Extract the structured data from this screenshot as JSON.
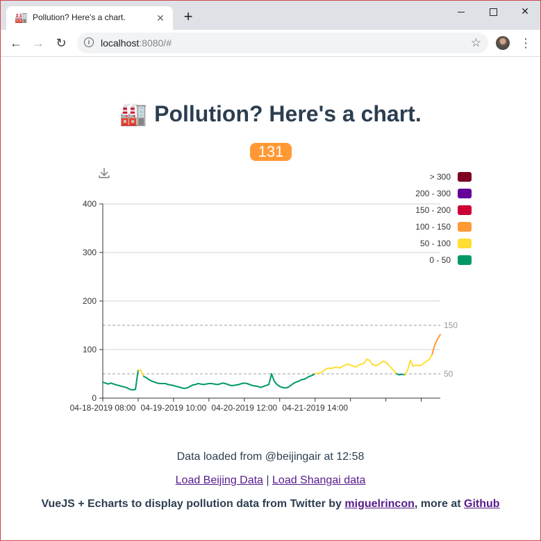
{
  "browser": {
    "tab_title": "Pollution? Here's a chart.",
    "tab_favicon": "🏭",
    "tab_close": "✕",
    "new_tab": "+",
    "url_host": "localhost",
    "url_rest": ":8080/#",
    "menu_glyph": "⋮",
    "star_glyph": "☆",
    "back_glyph": "←",
    "forward_glyph": "→",
    "reload_glyph": "↻",
    "close_glyph": "✕"
  },
  "page": {
    "heading_icon": "🏭",
    "heading": "Pollution? Here's a chart.",
    "current_aqi": "131",
    "current_aqi_color": "#ff9933",
    "loaded_text": "Data loaded from @beijingair at 12:58",
    "link_beijing": "Load Beijing Data",
    "link_sep": "|",
    "link_shanghai": "Load Shangai data",
    "credits_prefix": "VueJS + Echarts to display pollution data from Twitter by",
    "credits_author": "miguelrincon",
    "credits_mid": ", more at",
    "credits_github": "Github"
  },
  "chart_data": {
    "type": "line",
    "title": "",
    "xlabel": "",
    "ylabel": "",
    "ylim": [
      0,
      400
    ],
    "yticks": [
      0,
      100,
      200,
      300,
      400
    ],
    "xtick_labels": [
      "04-18-2019 08:00",
      "04-19-2019 10:00",
      "04-20-2019 12:00",
      "04-21-2019 14:00"
    ],
    "xtick_index": [
      0,
      26,
      52,
      78
    ],
    "grid": true,
    "legend_position": "top-right",
    "mark_lines": [
      {
        "label": "150",
        "value": 150
      },
      {
        "label": "50",
        "value": 50
      }
    ],
    "visual_map": [
      {
        "label": "> 300",
        "min": 300,
        "max": 1000,
        "color": "#7e0023"
      },
      {
        "label": "200 - 300",
        "min": 200,
        "max": 300,
        "color": "#660099"
      },
      {
        "label": "150 - 200",
        "min": 150,
        "max": 200,
        "color": "#cc0033"
      },
      {
        "label": "100 - 150",
        "min": 100,
        "max": 150,
        "color": "#ff9933"
      },
      {
        "label": "50 - 100",
        "min": 50,
        "max": 100,
        "color": "#ffde33"
      },
      {
        "label": "0 - 50",
        "min": 0,
        "max": 50,
        "color": "#096"
      }
    ],
    "series": [
      {
        "values": [
          33,
          31,
          29,
          31,
          29,
          27,
          26,
          24,
          23,
          21,
          18,
          17,
          18,
          58,
          57,
          45,
          42,
          38,
          35,
          33,
          31,
          30,
          30,
          30,
          28,
          27,
          26,
          24,
          23,
          21,
          20,
          21,
          24,
          27,
          28,
          30,
          29,
          28,
          29,
          30,
          30,
          29,
          28,
          29,
          31,
          30,
          28,
          26,
          26,
          27,
          28,
          30,
          31,
          30,
          28,
          26,
          25,
          24,
          22,
          24,
          26,
          28,
          50,
          35,
          28,
          24,
          22,
          21,
          22,
          26,
          30,
          33,
          35,
          38,
          39,
          42,
          45,
          47,
          50,
          51,
          52,
          56,
          60,
          62,
          61,
          63,
          64,
          62,
          65,
          68,
          70,
          68,
          66,
          64,
          68,
          70,
          72,
          80,
          78,
          70,
          67,
          68,
          72,
          76,
          74,
          68,
          62,
          56,
          50,
          48,
          49,
          48,
          58,
          78,
          66,
          68,
          67,
          68,
          72,
          76,
          80,
          90,
          110,
          122,
          131
        ]
      }
    ]
  }
}
